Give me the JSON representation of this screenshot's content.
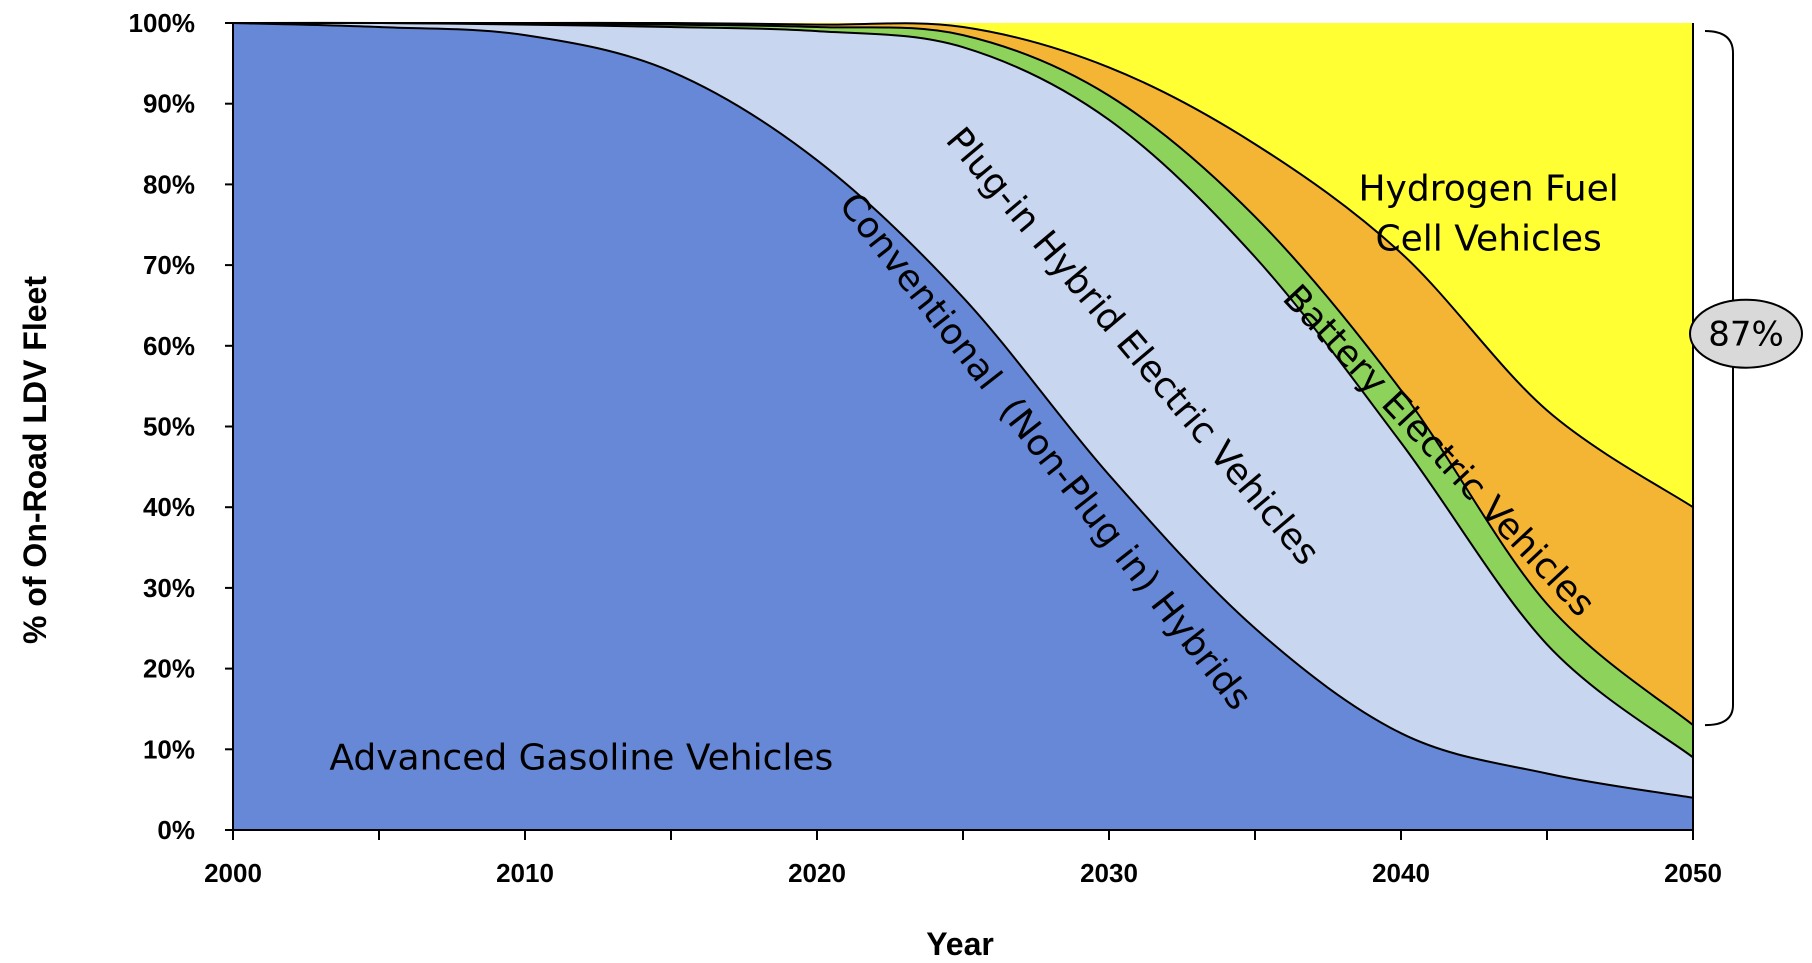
{
  "chart_data": {
    "type": "area",
    "title": "",
    "xlabel": "Year",
    "ylabel": "% of On-Road LDV Fleet",
    "xlim": [
      2000,
      2050
    ],
    "ylim": [
      0,
      100
    ],
    "x_ticks": [
      "2000",
      "2010",
      "2020",
      "2030",
      "2040",
      "2050"
    ],
    "y_ticks": [
      "0%",
      "10%",
      "20%",
      "30%",
      "40%",
      "50%",
      "60%",
      "70%",
      "80%",
      "90%",
      "100%"
    ],
    "stacked": true,
    "grid": false,
    "legend": "none (series labeled inside the areas)",
    "x": [
      2000,
      2005,
      2010,
      2015,
      2020,
      2025,
      2030,
      2035,
      2040,
      2045,
      2050
    ],
    "series": [
      {
        "name": "Advanced Gasoline Vehicles",
        "color": "#6788d6",
        "values": [
          100,
          99.5,
          98.5,
          94,
          83,
          66,
          44,
          25,
          12,
          7,
          4
        ]
      },
      {
        "name": "Conventional  (Non-Plug in) Hybrids",
        "color": "#c8d6f0",
        "values": [
          0,
          0.5,
          1.3,
          5.5,
          16,
          31,
          44,
          46,
          36,
          16,
          5
        ]
      },
      {
        "name": "Plug-in Hybrid Electric Vehicles",
        "color": "#8dd35b",
        "values": [
          0,
          0,
          0.1,
          0.3,
          0.5,
          1.5,
          3,
          5,
          6.5,
          5,
          4
        ]
      },
      {
        "name": "Battery Electric Vehicles",
        "color": "#f4b535",
        "values": [
          0,
          0,
          0.1,
          0.2,
          0.3,
          1,
          3.5,
          9,
          17,
          24,
          27
        ]
      },
      {
        "name": "Hydrogen Fuel Cell Vehicles",
        "color": "#ffff33",
        "values": [
          0,
          0,
          0,
          0,
          0.2,
          0.5,
          5.5,
          15,
          28.5,
          48,
          60
        ]
      }
    ],
    "annotations": [
      {
        "text": "87%",
        "type": "bracket-callout",
        "from_value": 13,
        "to_value": 100
      }
    ]
  }
}
